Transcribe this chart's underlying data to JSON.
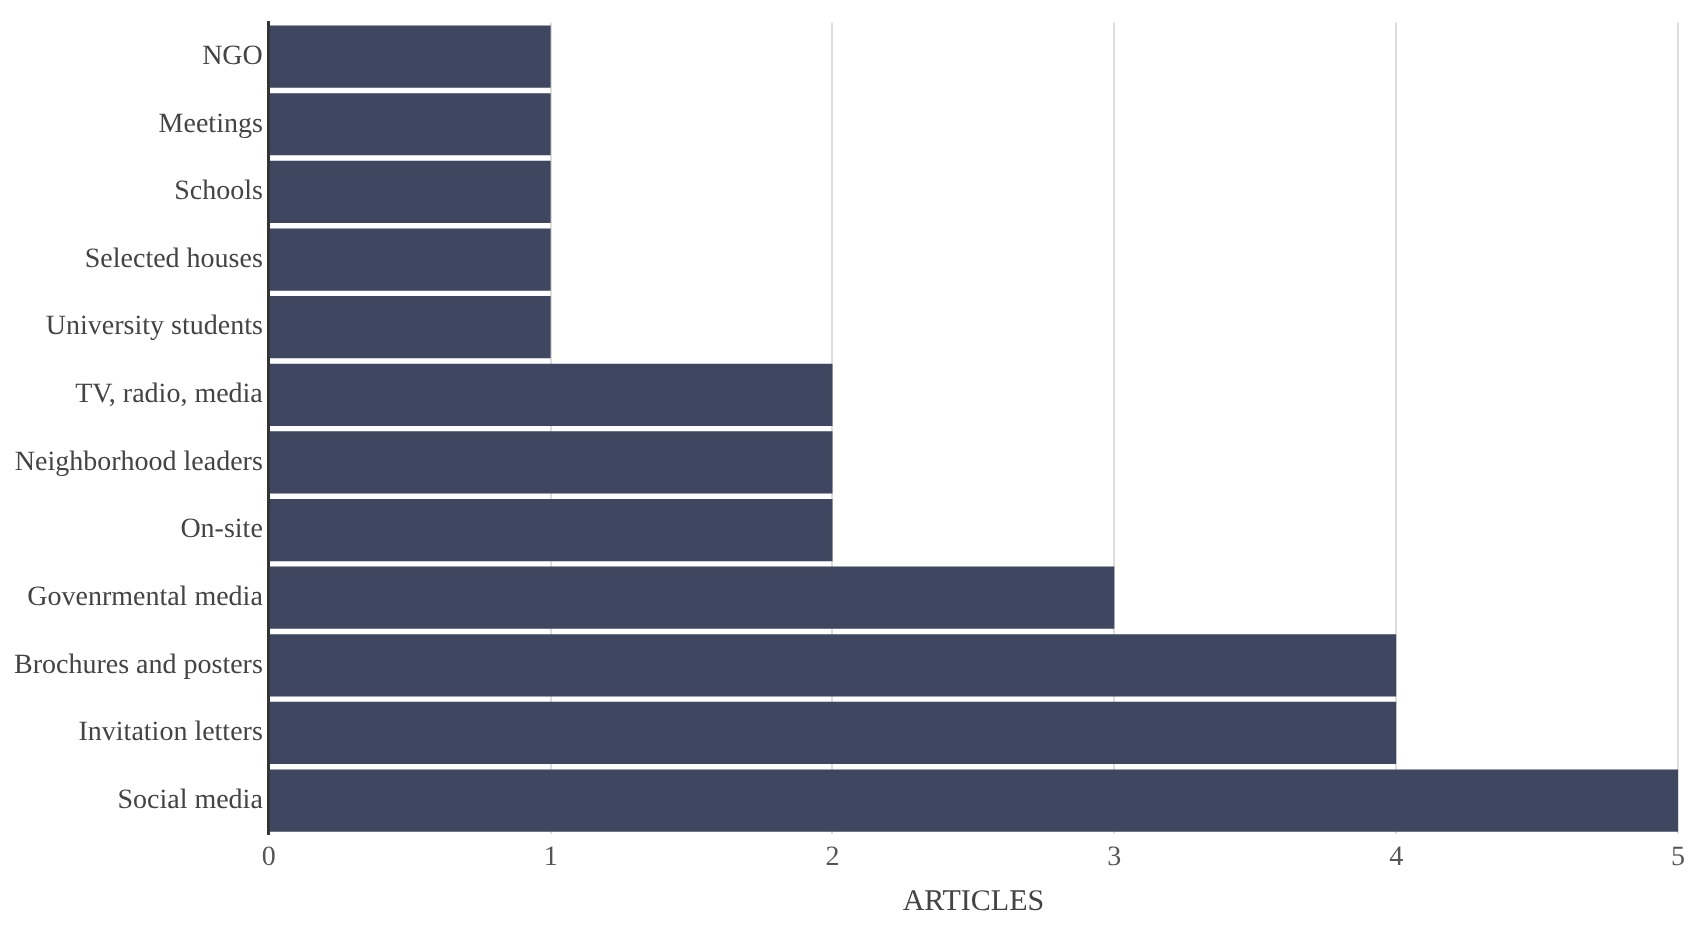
{
  "chart_data": {
    "type": "bar",
    "orientation": "horizontal",
    "xlabel": "ARTICLES",
    "categories": [
      "NGO",
      "Meetings",
      "Schools",
      "Selected houses",
      "University students",
      "TV, radio, media",
      "Neighborhood leaders",
      "On-site",
      "Govenrmental media",
      "Brochures and posters",
      "Invitation letters",
      "Social media"
    ],
    "values": [
      1,
      1,
      1,
      1,
      1,
      2,
      2,
      2,
      3,
      4,
      4,
      5
    ],
    "color": "#3f4760",
    "xlim": [
      0,
      5
    ],
    "xticks": [
      0,
      1,
      2,
      3,
      4,
      5
    ],
    "grid": "x",
    "legend": false
  }
}
